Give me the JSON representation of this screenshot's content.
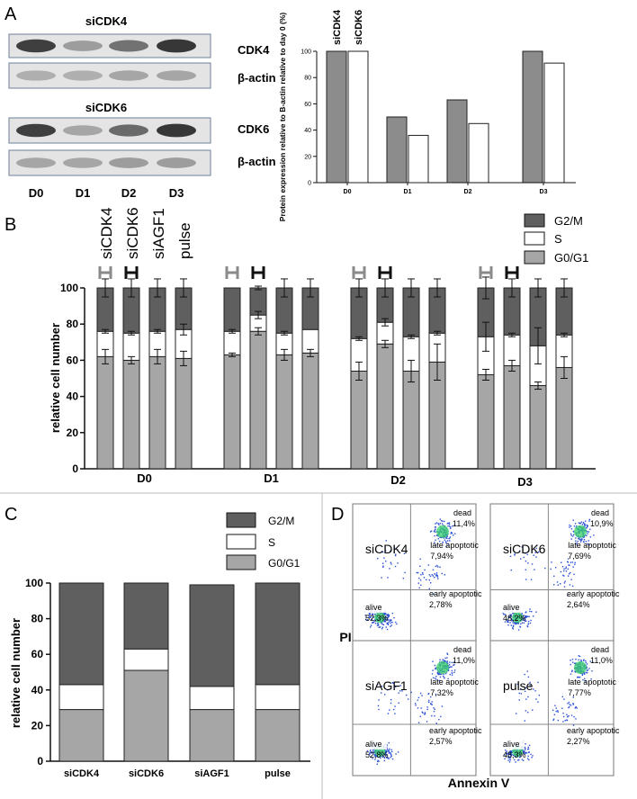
{
  "panel_letters": [
    "A",
    "B",
    "C",
    "D"
  ],
  "western_blots": {
    "groups": [
      {
        "title": "siCDK4",
        "rows": [
          {
            "label": "CDK4",
            "band_intensity": [
              0.9,
              0.35,
              0.6,
              0.95
            ]
          },
          {
            "label": "β-actin",
            "band_intensity": [
              0.25,
              0.25,
              0.3,
              0.3
            ]
          }
        ]
      },
      {
        "title": "siCDK6",
        "rows": [
          {
            "label": "CDK6",
            "band_intensity": [
              0.9,
              0.3,
              0.65,
              0.95
            ]
          },
          {
            "label": "β-actin",
            "band_intensity": [
              0.3,
              0.3,
              0.35,
              0.35
            ]
          }
        ]
      }
    ],
    "lanes": [
      "D0",
      "D1",
      "D2",
      "D3"
    ]
  },
  "chart_data": [
    {
      "id": "A",
      "type": "bar",
      "categories": [
        "D0",
        "D1",
        "D2",
        "D3"
      ],
      "series": [
        {
          "name": "siCDK4",
          "color": "#8c8c8c",
          "values": [
            100,
            50,
            63,
            100
          ]
        },
        {
          "name": "siCDK6",
          "color": "#ffffff",
          "values": [
            100,
            36,
            45,
            91
          ]
        }
      ],
      "ylabel": "Protein expression relative to B-actin relative to day 0 (%)",
      "ylim": [
        0,
        100
      ],
      "yticks": [
        0,
        20,
        40,
        60,
        80,
        100
      ]
    },
    {
      "id": "B",
      "type": "bar",
      "stacked": true,
      "group_labels": [
        "D0",
        "D1",
        "D2",
        "D3"
      ],
      "bar_labels": [
        "siCDK4",
        "siCDK6",
        "siAGF1",
        "pulse"
      ],
      "legend": [
        {
          "name": "G2/M",
          "color": "#5f5f5f"
        },
        {
          "name": "S",
          "color": "#ffffff"
        },
        {
          "name": "G0/G1",
          "color": "#a6a6a6"
        }
      ],
      "ylabel": "relative cell number",
      "ylim": [
        0,
        100
      ],
      "yticks": [
        0,
        20,
        40,
        60,
        80,
        100
      ],
      "groups": [
        {
          "name": "D0",
          "bars": [
            {
              "g0g1": 62,
              "s": 14,
              "g2m": 24,
              "err_g0g1": 4,
              "err_s": 1,
              "err_top": 5
            },
            {
              "g0g1": 60,
              "s": 15,
              "g2m": 25,
              "err_g0g1": 2,
              "err_s": 1,
              "err_top": 5
            },
            {
              "g0g1": 62,
              "s": 14,
              "g2m": 24,
              "err_g0g1": 4,
              "err_s": 1,
              "err_top": 5
            },
            {
              "g0g1": 61,
              "s": 16,
              "g2m": 23,
              "err_g0g1": 4,
              "err_s": 3,
              "err_top": 5
            }
          ]
        },
        {
          "name": "D1",
          "bars": [
            {
              "g0g1": 63,
              "s": 13,
              "g2m": 24,
              "err_g0g1": 1,
              "err_s": 1,
              "err_top": 0
            },
            {
              "g0g1": 76,
              "s": 9,
              "g2m": 15,
              "err_g0g1": 2,
              "err_s": 2,
              "err_top": 1
            },
            {
              "g0g1": 63,
              "s": 12,
              "g2m": 25,
              "err_g0g1": 3,
              "err_s": 1,
              "err_top": 5
            },
            {
              "g0g1": 64,
              "s": 13,
              "g2m": 23,
              "err_g0g1": 2,
              "err_s": 0,
              "err_top": 5
            }
          ]
        },
        {
          "name": "D2",
          "bars": [
            {
              "g0g1": 54,
              "s": 18,
              "g2m": 28,
              "err_g0g1": 5,
              "err_s": 1,
              "err_top": 5
            },
            {
              "g0g1": 69,
              "s": 12,
              "g2m": 19,
              "err_g0g1": 2,
              "err_s": 2,
              "err_top": 5
            },
            {
              "g0g1": 54,
              "s": 19,
              "g2m": 27,
              "err_g0g1": 6,
              "err_s": 1,
              "err_top": 5
            },
            {
              "g0g1": 59,
              "s": 16,
              "g2m": 25,
              "err_g0g1": 10,
              "err_s": 1,
              "err_top": 5
            }
          ]
        },
        {
          "name": "D3",
          "bars": [
            {
              "g0g1": 52,
              "s": 21,
              "g2m": 27,
              "err_g0g1": 3,
              "err_s": 8,
              "err_top": 6
            },
            {
              "g0g1": 57,
              "s": 17,
              "g2m": 26,
              "err_g0g1": 3,
              "err_s": 1,
              "err_top": 5
            },
            {
              "g0g1": 46,
              "s": 22,
              "g2m": 32,
              "err_g0g1": 2,
              "err_s": 10,
              "err_top": 5
            },
            {
              "g0g1": 56,
              "s": 18,
              "g2m": 26,
              "err_g0g1": 6,
              "err_s": 1,
              "err_top": 5
            }
          ]
        }
      ]
    },
    {
      "id": "C",
      "type": "bar",
      "stacked": true,
      "categories": [
        "siCDK4",
        "siCDK6",
        "siAGF1",
        "pulse"
      ],
      "series": [
        {
          "name": "G0/G1",
          "color": "#a6a6a6",
          "values": [
            29,
            51,
            29,
            29
          ]
        },
        {
          "name": "S",
          "color": "#ffffff",
          "values": [
            14,
            12,
            13,
            14
          ]
        },
        {
          "name": "G2/M",
          "color": "#5f5f5f",
          "values": [
            57,
            37,
            57,
            57
          ]
        }
      ],
      "legend_order": [
        "G2/M",
        "S",
        "G0/G1"
      ],
      "ylabel": "relative cell number",
      "ylim": [
        0,
        100
      ],
      "yticks": [
        0,
        20,
        40,
        60,
        80,
        100
      ]
    },
    {
      "id": "D",
      "type": "scatter",
      "xlabel": "Annexin V",
      "ylabel": "PI",
      "plots": [
        {
          "name": "siCDK4",
          "dead": "11,4%",
          "late": "7,94%",
          "early": "2,78%",
          "alive": "52,3%"
        },
        {
          "name": "siCDK6",
          "dead": "10,9%",
          "late": "7,69%",
          "early": "2,64%",
          "alive": "48,2%"
        },
        {
          "name": "siAGF1",
          "dead": "11,0%",
          "late": "7,32%",
          "early": "2,57%",
          "alive": "52,8%"
        },
        {
          "name": "pulse",
          "dead": "11,0%",
          "late": "7,77%",
          "early": "2,27%",
          "alive": "48,3%"
        }
      ],
      "quadrant_labels": {
        "dead": "dead",
        "late": "late apoptotic",
        "early": "early apoptotic",
        "alive": "alive"
      }
    }
  ]
}
